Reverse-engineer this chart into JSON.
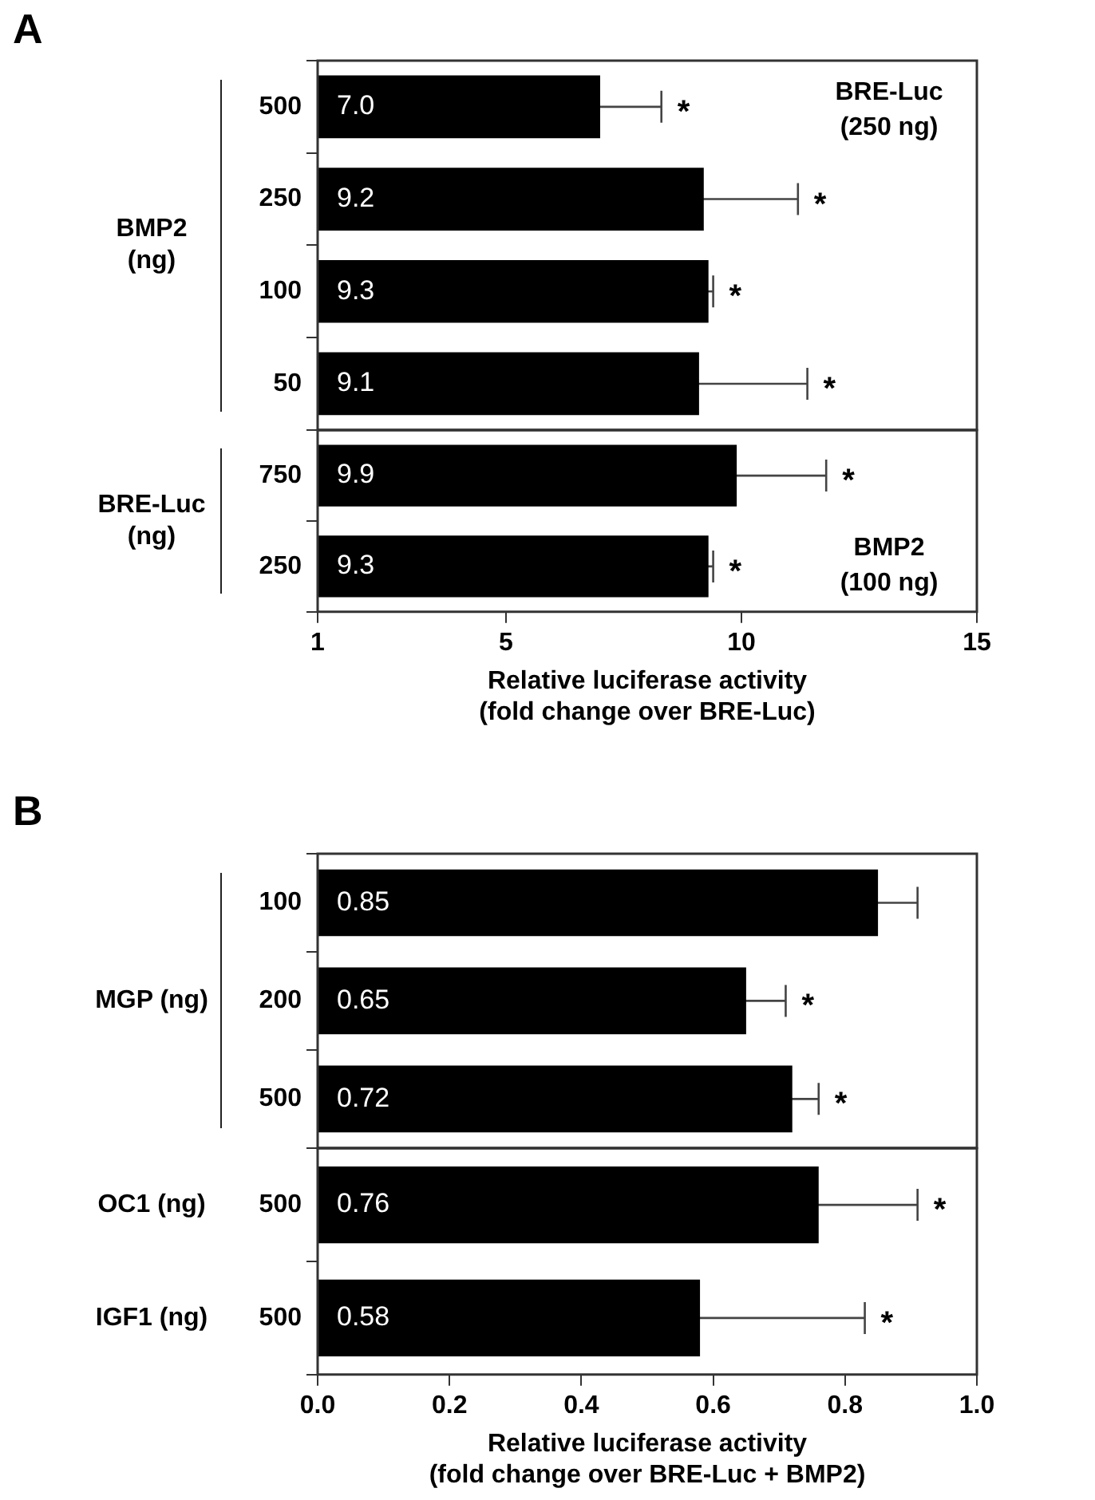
{
  "chart_data": [
    {
      "type": "bar",
      "orientation": "horizontal",
      "title": "A",
      "ylabel": "BMP2\n(ng)",
      "categories": [
        "500",
        "250",
        "100",
        "50"
      ],
      "values": [
        7.0,
        9.2,
        9.3,
        9.1
      ],
      "value_labels": [
        "7.0",
        "9.2",
        "9.3",
        "9.1"
      ],
      "errors": [
        1.3,
        2.0,
        0.1,
        2.3
      ],
      "color": "#000000",
      "xlim": [
        1,
        15
      ],
      "tick_labels": "y",
      "annotations": [
        "BRE-Luc\n(250 ng)",
        {
          "text": "*",
          "x": 8.3,
          "y": "500"
        },
        {
          "text": "*",
          "x": 11.2,
          "y": "250"
        },
        {
          "text": "*",
          "x": 9.4,
          "y": "100"
        },
        {
          "text": "*",
          "x": 11.4,
          "y": "50"
        }
      ]
    },
    {
      "type": "bar",
      "orientation": "horizontal",
      "ylabel": "BRE-Luc\n(ng)",
      "xlabel": "Relative luciferase activity\n(fold change over BRE-Luc)",
      "categories": [
        "750",
        "250"
      ],
      "values": [
        9.9,
        9.3
      ],
      "value_labels": [
        "9.9",
        "9.3"
      ],
      "errors": [
        1.9,
        0.1
      ],
      "color": "#000000",
      "xlim": [
        1,
        15
      ],
      "xticks": [
        1,
        5,
        10,
        15
      ],
      "annotations": [
        "BMP2\n(100 ng)",
        {
          "text": "*",
          "x": 11.8,
          "y": "750"
        },
        {
          "text": "*",
          "x": 9.4,
          "y": "250"
        }
      ]
    },
    {
      "type": "bar",
      "orientation": "horizontal",
      "title": "B",
      "ylabel": "MGP (ng)",
      "categories": [
        "100",
        "200",
        "500"
      ],
      "values": [
        0.85,
        0.65,
        0.72
      ],
      "value_labels": [
        "0.85",
        "0.65",
        "0.72"
      ],
      "errors": [
        0.06,
        0.06,
        0.04
      ],
      "color": "#000000",
      "xlim": [
        0,
        1
      ],
      "tick_labels": "y",
      "annotations": [
        {
          "text": "*",
          "x": 0.71,
          "y": "200"
        },
        {
          "text": "*",
          "x": 0.76,
          "y": "500"
        }
      ]
    },
    {
      "type": "bar",
      "orientation": "horizontal",
      "xlabel": "Relative luciferase activity\n(fold change over BRE-Luc + BMP2)",
      "categories": [
        "500",
        "500"
      ],
      "values": [
        0.76,
        0.58
      ],
      "value_labels": [
        "0.76",
        "0.58"
      ],
      "errors": [
        0.15,
        0.25
      ],
      "color": "#000000",
      "xlim": [
        0,
        1
      ],
      "xticks": [
        {
          "value": 0,
          "label": "0.0"
        },
        0.2,
        0.4,
        0.6,
        0.8,
        {
          "value": 1,
          "label": "1.0"
        }
      ],
      "annotations": [
        "OC1 (ng)",
        "IGF1 (ng)",
        {
          "text": "*",
          "x": 0.91,
          "y": "500"
        },
        {
          "text": "*",
          "x": 0.83
        }
      ]
    }
  ]
}
